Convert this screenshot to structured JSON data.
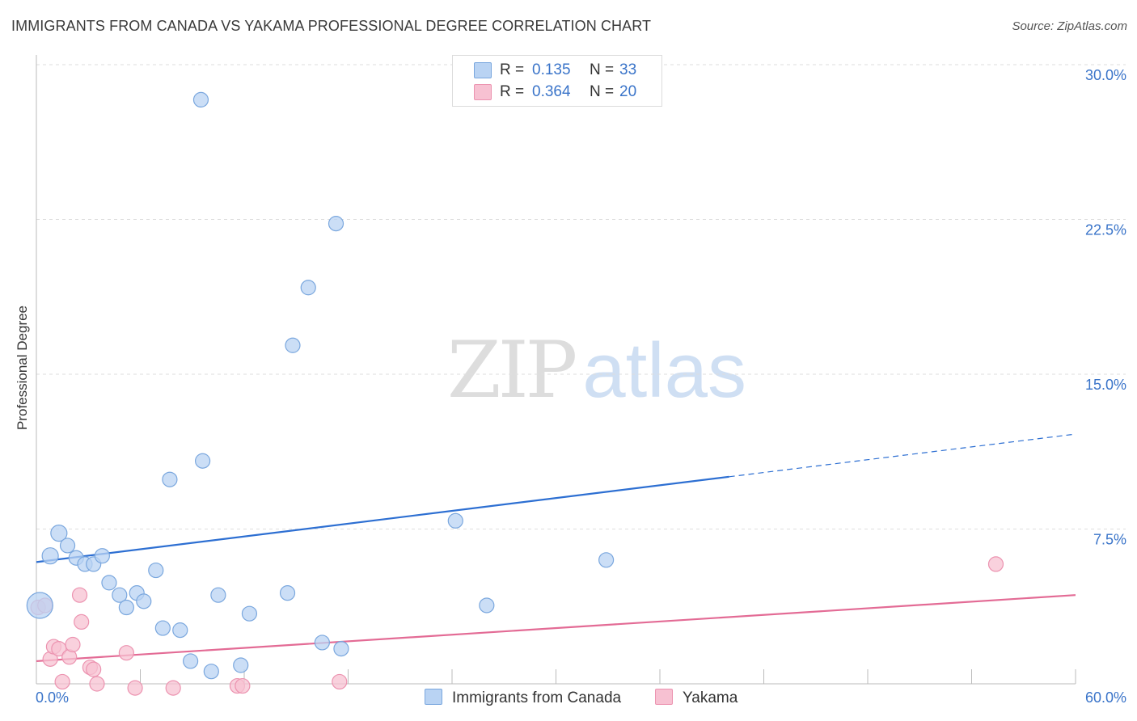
{
  "header": {
    "title": "IMMIGRANTS FROM CANADA VS YAKAMA PROFESSIONAL DEGREE CORRELATION CHART",
    "source": "Source: ZipAtlas.com"
  },
  "watermark": {
    "zip": "ZIP",
    "atlas": "atlas"
  },
  "legend": {
    "items": [
      {
        "r_label": "R =",
        "r_value": "0.135",
        "n_label": "N =",
        "n_value": "33"
      },
      {
        "r_label": "R =",
        "r_value": "0.364",
        "n_label": "N =",
        "n_value": "20"
      }
    ]
  },
  "chart_data": {
    "type": "scatter",
    "title": "IMMIGRANTS FROM CANADA VS YAKAMA PROFESSIONAL DEGREE CORRELATION CHART",
    "xlabel": "",
    "ylabel": "Professional Degree",
    "xlim": [
      0,
      60
    ],
    "ylim": [
      0,
      31
    ],
    "x_tick_labels": [
      "0.0%",
      "60.0%"
    ],
    "y_ticks": [
      7.5,
      15.0,
      22.5,
      30.0
    ],
    "y_tick_labels": [
      "7.5%",
      "15.0%",
      "22.5%",
      "30.0%"
    ],
    "grid": true,
    "colors": {
      "canada_fill": "#b9d3f3",
      "canada_stroke": "#7aa7de",
      "canada_line": "#2d6fd2",
      "yakama_fill": "#f7c1d2",
      "yakama_stroke": "#ec93b0",
      "yakama_line": "#e36b95",
      "tick_label": "#3a74c9",
      "grid": "#dedede",
      "axis": "#bbbbbb"
    },
    "series": [
      {
        "name": "Immigrants from Canada",
        "r": 0.135,
        "n": 33,
        "points": [
          [
            0.2,
            3.8,
            16
          ],
          [
            0.8,
            6.2,
            10
          ],
          [
            1.3,
            7.3,
            10
          ],
          [
            1.8,
            6.7,
            9
          ],
          [
            2.3,
            6.1,
            9
          ],
          [
            2.8,
            5.8,
            9
          ],
          [
            3.3,
            5.8,
            9
          ],
          [
            3.8,
            6.2,
            9
          ],
          [
            4.2,
            4.9,
            9
          ],
          [
            4.8,
            4.3,
            9
          ],
          [
            5.2,
            3.7,
            9
          ],
          [
            5.8,
            4.4,
            9
          ],
          [
            6.2,
            4.0,
            9
          ],
          [
            6.9,
            5.5,
            9
          ],
          [
            7.3,
            2.7,
            9
          ],
          [
            7.7,
            9.9,
            9
          ],
          [
            8.3,
            2.6,
            9
          ],
          [
            8.9,
            1.1,
            9
          ],
          [
            9.5,
            28.3,
            9
          ],
          [
            9.6,
            10.8,
            9
          ],
          [
            10.1,
            0.6,
            9
          ],
          [
            10.5,
            4.3,
            9
          ],
          [
            11.8,
            0.9,
            9
          ],
          [
            12.3,
            3.4,
            9
          ],
          [
            14.5,
            4.4,
            9
          ],
          [
            14.8,
            16.4,
            9
          ],
          [
            15.7,
            19.2,
            9
          ],
          [
            16.5,
            2.0,
            9
          ],
          [
            17.3,
            22.3,
            9
          ],
          [
            17.6,
            1.7,
            9
          ],
          [
            24.2,
            7.9,
            9
          ],
          [
            26.0,
            3.8,
            9
          ],
          [
            32.9,
            6.0,
            9
          ]
        ],
        "trend": {
          "x0": 0,
          "y0": 5.9,
          "x_solid_end": 40,
          "x1": 60,
          "y1": 12.1
        }
      },
      {
        "name": "Yakama",
        "r": 0.364,
        "n": 20,
        "points": [
          [
            0.1,
            3.7,
            9
          ],
          [
            0.5,
            3.8,
            9
          ],
          [
            0.8,
            1.2,
            9
          ],
          [
            1.0,
            1.8,
            9
          ],
          [
            1.3,
            1.7,
            9
          ],
          [
            1.5,
            0.1,
            9
          ],
          [
            1.9,
            1.3,
            9
          ],
          [
            2.1,
            1.9,
            9
          ],
          [
            2.5,
            4.3,
            9
          ],
          [
            2.6,
            3.0,
            9
          ],
          [
            3.1,
            0.8,
            9
          ],
          [
            3.3,
            0.7,
            9
          ],
          [
            3.5,
            0.0,
            9
          ],
          [
            5.2,
            1.5,
            9
          ],
          [
            5.7,
            -0.2,
            9
          ],
          [
            7.9,
            -0.2,
            9
          ],
          [
            11.6,
            -0.1,
            9
          ],
          [
            11.9,
            -0.1,
            9
          ],
          [
            17.5,
            0.1,
            9
          ],
          [
            55.4,
            5.8,
            9
          ]
        ],
        "trend": {
          "x0": 0,
          "y0": 1.1,
          "x_solid_end": 60,
          "x1": 60,
          "y1": 4.3
        }
      }
    ]
  }
}
